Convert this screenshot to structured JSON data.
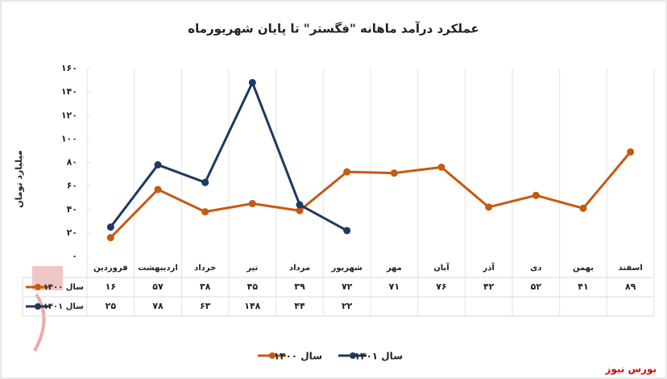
{
  "chart_data": {
    "type": "line",
    "title": "عملکرد درآمد ماهانه \"فگستر\" تا پایان شهریورماه",
    "y_label": "میلیارد تومان",
    "source": "بورس نیوز",
    "categories": [
      "فروردین",
      "اردیبهشت",
      "خرداد",
      "تیر",
      "مرداد",
      "شهریور",
      "مهر",
      "آبان",
      "آذر",
      "دی",
      "بهمن",
      "اسفند"
    ],
    "series": [
      {
        "name": "سال ۱۴۰۰",
        "color": "#c55a11",
        "values": [
          16,
          57,
          38,
          45,
          39,
          72,
          71,
          76,
          42,
          52,
          41,
          89
        ],
        "value_labels": [
          "۱۶",
          "۵۷",
          "۳۸",
          "۴۵",
          "۳۹",
          "۷۲",
          "۷۱",
          "۷۶",
          "۴۲",
          "۵۲",
          "۴۱",
          "۸۹"
        ]
      },
      {
        "name": "سال ۱۴۰۱",
        "color": "#1f3864",
        "values": [
          25,
          78,
          63,
          148,
          44,
          22,
          null,
          null,
          null,
          null,
          null,
          null
        ],
        "value_labels": [
          "۲۵",
          "۷۸",
          "۶۳",
          "۱۴۸",
          "۴۴",
          "۲۲",
          null,
          null,
          null,
          null,
          null,
          null
        ]
      }
    ],
    "ylim": [
      0,
      160
    ],
    "yticks": [
      {
        "value": 0,
        "label": "۰"
      },
      {
        "value": 20,
        "label": "۲۰"
      },
      {
        "value": 40,
        "label": "۴۰"
      },
      {
        "value": 60,
        "label": "۶۰"
      },
      {
        "value": 80,
        "label": "۸۰"
      },
      {
        "value": 100,
        "label": "۱۰۰"
      },
      {
        "value": 120,
        "label": "۱۲۰"
      },
      {
        "value": 140,
        "label": "۱۴۰"
      },
      {
        "value": 160,
        "label": "۱۶۰"
      }
    ],
    "grid": true
  }
}
